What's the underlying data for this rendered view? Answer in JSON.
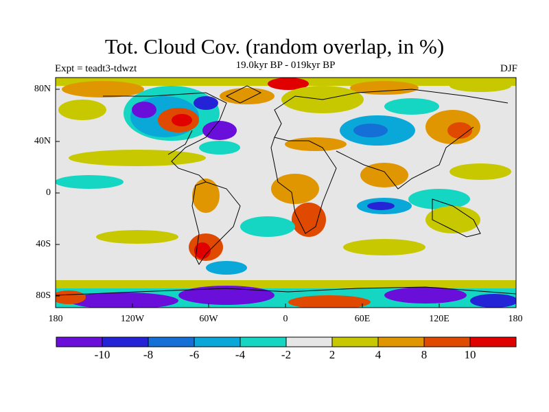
{
  "title": "Tot. Cloud Cov. (random overlap, in %)",
  "subtitle": "19.0kyr BP - 019kyr BP",
  "experiment": "Expt = teadt3-tdwzt",
  "season": "DJF",
  "lat_labels": [
    "80N",
    "40N",
    "0",
    "40S",
    "80S"
  ],
  "lon_labels": [
    "180",
    "120W",
    "60W",
    "0",
    "60E",
    "120E",
    "180"
  ],
  "colorbar": {
    "colors": [
      "#6a0fd9",
      "#2424d6",
      "#1470d6",
      "#0aa8d8",
      "#14d6c2",
      "#e6e6e6",
      "#c8c800",
      "#e09600",
      "#e04a00",
      "#e00000"
    ],
    "labels": [
      "-10",
      "-8",
      "-6",
      "-4",
      "-2",
      "2",
      "4",
      "8",
      "10"
    ]
  }
}
